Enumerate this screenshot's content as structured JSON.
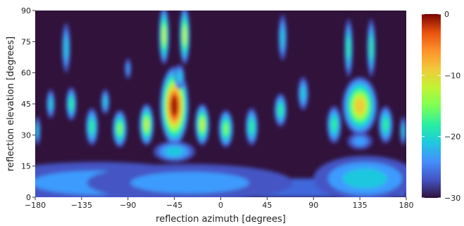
{
  "chart_data": {
    "type": "heatmap",
    "title": "",
    "xlabel": "reflection azimuth [degrees]",
    "ylabel": "reflection elevation [degrees]",
    "xlim": [
      -180,
      180
    ],
    "ylim": [
      0,
      90
    ],
    "x_ticks": [
      -180,
      -135,
      -90,
      -45,
      0,
      45,
      90,
      135,
      180
    ],
    "x_tick_labels": [
      "−180",
      "−135",
      "−90",
      "−45",
      "0",
      "45",
      "90",
      "135",
      "180"
    ],
    "y_ticks": [
      0,
      15,
      30,
      45,
      60,
      75,
      90
    ],
    "y_tick_labels": [
      "0",
      "15",
      "30",
      "45",
      "60",
      "75",
      "90"
    ],
    "colorbar": {
      "colormap": "turbo",
      "range": [
        -30,
        0
      ],
      "ticks": [
        0,
        -10,
        -20,
        -30
      ],
      "tick_labels": [
        "0",
        "−10",
        "−20",
        "−30"
      ]
    },
    "peaks": [
      {
        "azimuth": -45,
        "elevation": 44,
        "value": 0
      },
      {
        "azimuth": 135,
        "elevation": 44,
        "value": -10
      }
    ],
    "grid": false
  }
}
